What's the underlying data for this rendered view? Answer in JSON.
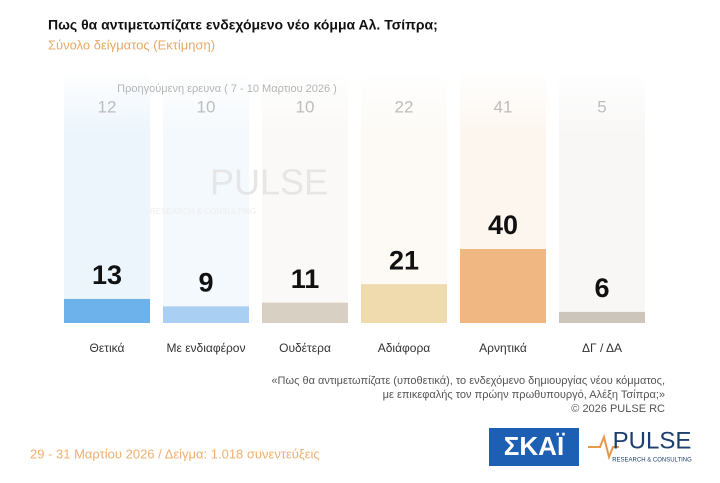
{
  "chart_data": {
    "type": "bar",
    "title": "Πως θα αντιμετωπίζατε ενδεχόμενο νέο κόμμα Αλ. Τσίπρα;",
    "subtitle": "Σύνολο δείγματος  (Εκτίμηση)",
    "categories": [
      "Θετικά",
      "Με ενδιαφέρον",
      "Ουδέτερα",
      "Αδιάφορα",
      "Αρνητικά",
      "ΔΓ / ΔΑ"
    ],
    "values": [
      13,
      9,
      11,
      21,
      40,
      6
    ],
    "colors": [
      "#6db2ea",
      "#a9d0f2",
      "#d8d0c2",
      "#efdbae",
      "#f1b783",
      "#cbc5bc"
    ],
    "previous_label": "Προηγούμενη ερευνα ( 7 - 10 Μαρτιου 2026 )",
    "previous_values": [
      12,
      10,
      10,
      22,
      41,
      5
    ],
    "notes": [
      "«Πως θα αντιμετωπίζατε (υποθετικά), το ενδεχόμενο δημιουργίας νέου κόμματος,",
      "με επικεφαλής τον πρώην πρωθυπουργό, Αλέξη Τσίπρα;»",
      "©  2026  PULSE RC"
    ],
    "footer": "29 - 31  Μαρτίου 2026  /  Δείγμα:  1.018 συνεντεύξεις",
    "logos": [
      "ΣΚΑΪ",
      "PULSE",
      "RESEARCH & CONSULTING"
    ]
  }
}
